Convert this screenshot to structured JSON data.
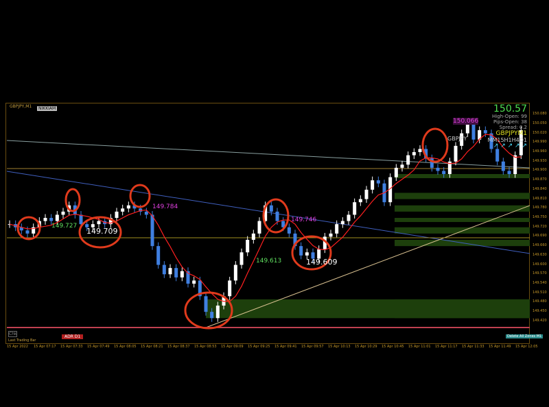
{
  "window": {
    "symbol_title": "GBPJPY,M1",
    "logo_text": "NIKKIAM"
  },
  "info_panel": {
    "price": "150.57",
    "line1": "High-Open: 99",
    "line2": "Pips-Open: 38",
    "line3": "Spread: 0.2",
    "symbol_tf": "GBPJPYM1",
    "tf_row": "MM15H1H4D1",
    "arrows": "↗ ↗ ↗ ↗ ↗",
    "pair": "GBPJPY"
  },
  "annotations": [
    "149.727",
    "149.709",
    "149.784",
    "149.746",
    "149.613",
    "149.609",
    "150.066"
  ],
  "bottom_bar": {
    "adr": "ADR D1",
    "small_label": "Chk",
    "footer": "Last Trading Bar",
    "button": "Delete All Zones M1"
  },
  "colors": {
    "up_candle": "#ffffff",
    "down_candle": "#3f7fe0",
    "zone": "#1d3f0c",
    "annotation_circle": "#e03a1c",
    "ma": "#ff2020",
    "axis": "#c89a2a"
  },
  "chart_data": {
    "type": "candlestick",
    "symbol": "GBPJPY",
    "timeframe": "M1",
    "ylim": [
      149.4,
      150.1
    ],
    "y_ticks": [
      149.42,
      149.45,
      149.48,
      149.51,
      149.54,
      149.57,
      149.6,
      149.63,
      149.66,
      149.69,
      149.72,
      149.75,
      149.78,
      149.81,
      149.84,
      149.87,
      149.9,
      149.93,
      149.96,
      149.99,
      150.02,
      150.05,
      150.08
    ],
    "x_ticks": [
      "15 Apr 2022",
      "15 Apr 07:17",
      "15 Apr 07:33",
      "15 Apr 07:49",
      "15 Apr 08:05",
      "15 Apr 08:21",
      "15 Apr 08:37",
      "15 Apr 08:53",
      "15 Apr 09:09",
      "15 Apr 09:25",
      "15 Apr 09:41",
      "15 Apr 09:57",
      "15 Apr 10:13",
      "15 Apr 10:29",
      "15 Apr 10:45",
      "15 Apr 11:01",
      "15 Apr 11:17",
      "15 Apr 11:33",
      "15 Apr 11:49",
      "15 Apr 12:05"
    ],
    "closes": [
      149.73,
      149.72,
      149.71,
      149.7,
      149.72,
      149.74,
      149.75,
      149.74,
      149.76,
      149.77,
      149.79,
      149.76,
      149.73,
      149.72,
      149.73,
      149.74,
      149.73,
      149.75,
      149.77,
      149.78,
      149.79,
      149.78,
      149.77,
      149.76,
      149.66,
      149.6,
      149.57,
      149.59,
      149.56,
      149.58,
      149.54,
      149.55,
      149.5,
      149.45,
      149.43,
      149.47,
      149.5,
      149.55,
      149.6,
      149.64,
      149.68,
      149.7,
      149.74,
      149.79,
      149.77,
      149.74,
      149.72,
      149.7,
      149.66,
      149.63,
      149.64,
      149.62,
      149.65,
      149.69,
      149.7,
      149.73,
      149.74,
      149.76,
      149.8,
      149.81,
      149.84,
      149.87,
      149.86,
      149.8,
      149.88,
      149.91,
      149.92,
      149.95,
      149.96,
      149.97,
      149.94,
      149.91,
      149.9,
      149.89,
      149.93,
      149.98,
      150.02,
      150.05,
      150.0,
      150.03,
      150.02,
      149.97,
      149.93,
      149.9,
      149.89,
      149.95,
      150.03
    ],
    "zones": [
      [
        149.43,
        149.49
      ],
      [
        149.66,
        149.68
      ],
      [
        149.7,
        149.72
      ],
      [
        149.74,
        149.75
      ],
      [
        149.77,
        149.79
      ],
      [
        149.81,
        149.83
      ],
      [
        149.88,
        149.89
      ]
    ]
  }
}
